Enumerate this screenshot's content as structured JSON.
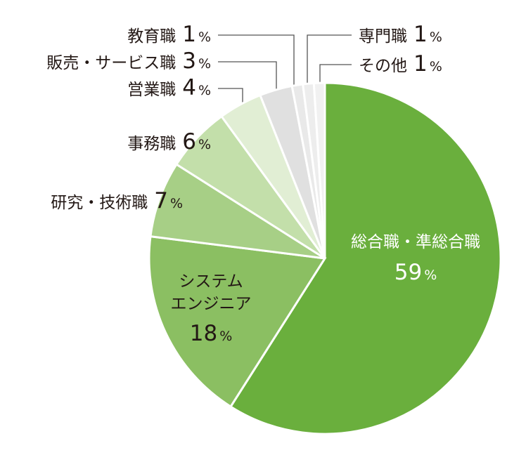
{
  "chart_data": {
    "type": "pie",
    "categories": [
      "総合職・準総合職",
      "システム\nエンジニア",
      "研究・技術職",
      "事務職",
      "営業職",
      "販売・サービス職",
      "教育職",
      "専門職",
      "その他"
    ],
    "values": [
      59,
      18,
      7,
      6,
      4,
      3,
      1,
      1,
      1
    ],
    "unit": "%",
    "colors": [
      "#6aaf3d",
      "#8bbf62",
      "#a7cf86",
      "#c3dfaa",
      "#e1eed4",
      "#e0e0e0",
      "#e9e9e9",
      "#ededed",
      "#f1f1f1"
    ]
  }
}
